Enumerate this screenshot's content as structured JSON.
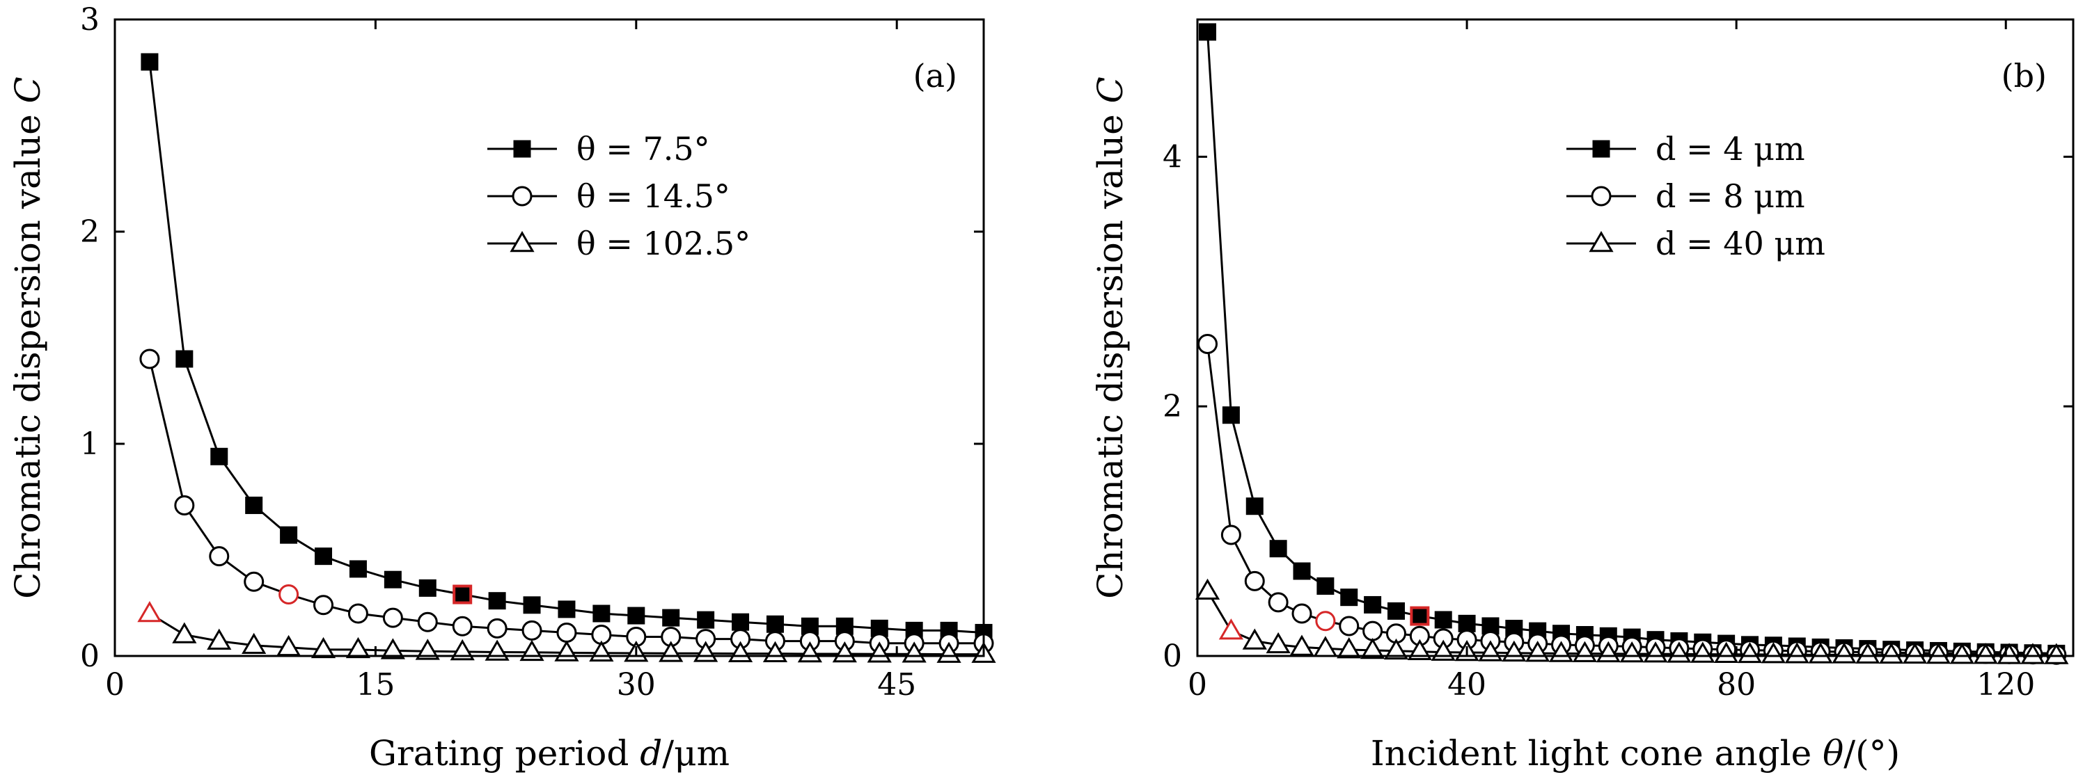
{
  "chart_data": [
    {
      "type": "line",
      "panel_label": "(a)",
      "xlabel": {
        "text": "Grating period ",
        "var": "d",
        "unit": "/μm"
      },
      "ylabel": {
        "text": "Chromatic dispersion value ",
        "var": "C"
      },
      "xlim": [
        0,
        50
      ],
      "ylim": [
        0,
        3
      ],
      "xticks": [
        0,
        15,
        30,
        45
      ],
      "yticks": [
        0,
        1,
        2,
        3
      ],
      "legend_position": "upper-right",
      "highlight_color": "#d62728",
      "series": [
        {
          "name": "θ = 7.5°",
          "marker": "square-filled",
          "x": [
            2,
            4,
            6,
            8,
            10,
            12,
            14,
            16,
            18,
            20,
            22,
            24,
            26,
            28,
            30,
            32,
            34,
            36,
            38,
            40,
            42,
            44,
            46,
            48,
            50
          ],
          "y": [
            2.8,
            1.4,
            0.94,
            0.71,
            0.57,
            0.47,
            0.41,
            0.36,
            0.32,
            0.29,
            0.26,
            0.24,
            0.22,
            0.2,
            0.19,
            0.18,
            0.17,
            0.16,
            0.15,
            0.14,
            0.14,
            0.13,
            0.12,
            0.12,
            0.11
          ],
          "highlight_index": [
            9
          ]
        },
        {
          "name": "θ = 14.5°",
          "marker": "circle-open",
          "x": [
            2,
            4,
            6,
            8,
            10,
            12,
            14,
            16,
            18,
            20,
            22,
            24,
            26,
            28,
            30,
            32,
            34,
            36,
            38,
            40,
            42,
            44,
            46,
            48,
            50
          ],
          "y": [
            1.4,
            0.71,
            0.47,
            0.35,
            0.29,
            0.24,
            0.2,
            0.18,
            0.16,
            0.14,
            0.13,
            0.12,
            0.11,
            0.1,
            0.09,
            0.09,
            0.08,
            0.08,
            0.07,
            0.07,
            0.07,
            0.06,
            0.06,
            0.06,
            0.06
          ],
          "highlight_index": [
            4
          ]
        },
        {
          "name": "θ = 102.5°",
          "marker": "triangle-open",
          "x": [
            2,
            4,
            6,
            8,
            10,
            12,
            14,
            16,
            18,
            20,
            22,
            24,
            26,
            28,
            30,
            32,
            34,
            36,
            38,
            40,
            42,
            44,
            46,
            48,
            50
          ],
          "y": [
            0.2,
            0.1,
            0.07,
            0.05,
            0.04,
            0.03,
            0.03,
            0.025,
            0.022,
            0.02,
            0.018,
            0.017,
            0.015,
            0.014,
            0.013,
            0.012,
            0.012,
            0.011,
            0.011,
            0.01,
            0.01,
            0.009,
            0.009,
            0.008,
            0.008
          ],
          "highlight_index": [
            0
          ]
        }
      ]
    },
    {
      "type": "line",
      "panel_label": "(b)",
      "xlabel": {
        "text": "Incident light cone angle ",
        "var": "θ",
        "unit": "/(°)"
      },
      "ylabel": {
        "text": "Chromatic dispersion value ",
        "var": "C"
      },
      "xlim": [
        0,
        130
      ],
      "ylim": [
        0,
        5.1
      ],
      "xticks": [
        0,
        40,
        80,
        120
      ],
      "yticks": [
        0,
        2,
        4
      ],
      "legend_position": "upper-right",
      "highlight_color": "#d62728",
      "series": [
        {
          "name": "d = 4 μm",
          "marker": "square-filled",
          "x": [
            1.5,
            5,
            8.5,
            12,
            15.5,
            19,
            22.5,
            26,
            29.5,
            33,
            36.5,
            40,
            43.5,
            47,
            50.5,
            54,
            57.5,
            61,
            64.5,
            68,
            71.5,
            75,
            78.5,
            82,
            85.5,
            89,
            92.5,
            96,
            99.5,
            103,
            106.5,
            110,
            113.5,
            117,
            120.5,
            124,
            127.5
          ],
          "y": [
            5.0,
            1.93,
            1.2,
            0.86,
            0.68,
            0.56,
            0.47,
            0.41,
            0.36,
            0.32,
            0.29,
            0.26,
            0.24,
            0.22,
            0.2,
            0.18,
            0.17,
            0.16,
            0.15,
            0.13,
            0.12,
            0.11,
            0.1,
            0.09,
            0.085,
            0.078,
            0.07,
            0.064,
            0.058,
            0.052,
            0.047,
            0.042,
            0.037,
            0.032,
            0.028,
            0.024,
            0.02
          ],
          "highlight_index": [
            9
          ]
        },
        {
          "name": "d = 8 μm",
          "marker": "circle-open",
          "x": [
            1.5,
            5,
            8.5,
            12,
            15.5,
            19,
            22.5,
            26,
            29.5,
            33,
            36.5,
            40,
            43.5,
            47,
            50.5,
            54,
            57.5,
            61,
            64.5,
            68,
            71.5,
            75,
            78.5,
            82,
            85.5,
            89,
            92.5,
            96,
            99.5,
            103,
            106.5,
            110,
            113.5,
            117,
            120.5,
            124,
            127.5
          ],
          "y": [
            2.5,
            0.97,
            0.6,
            0.43,
            0.34,
            0.28,
            0.24,
            0.2,
            0.18,
            0.16,
            0.14,
            0.13,
            0.12,
            0.11,
            0.1,
            0.09,
            0.085,
            0.08,
            0.075,
            0.068,
            0.062,
            0.056,
            0.052,
            0.047,
            0.043,
            0.04,
            0.036,
            0.033,
            0.03,
            0.027,
            0.024,
            0.022,
            0.019,
            0.017,
            0.015,
            0.013,
            0.01
          ],
          "highlight_index": [
            5
          ]
        },
        {
          "name": "d = 40 μm",
          "marker": "triangle-open",
          "x": [
            1.5,
            5,
            8.5,
            12,
            15.5,
            19,
            22.5,
            26,
            29.5,
            33,
            36.5,
            40,
            43.5,
            47,
            50.5,
            54,
            57.5,
            61,
            64.5,
            68,
            71.5,
            75,
            78.5,
            82,
            85.5,
            89,
            92.5,
            96,
            99.5,
            103,
            106.5,
            110,
            113.5,
            117,
            120.5,
            124,
            127.5
          ],
          "y": [
            0.52,
            0.2,
            0.12,
            0.09,
            0.07,
            0.06,
            0.05,
            0.045,
            0.04,
            0.035,
            0.03,
            0.028,
            0.026,
            0.024,
            0.022,
            0.02,
            0.019,
            0.018,
            0.017,
            0.016,
            0.015,
            0.014,
            0.013,
            0.012,
            0.011,
            0.01,
            0.009,
            0.009,
            0.008,
            0.007,
            0.007,
            0.006,
            0.005,
            0.005,
            0.004,
            0.004,
            0.003
          ],
          "highlight_index": [
            1
          ]
        }
      ]
    }
  ]
}
